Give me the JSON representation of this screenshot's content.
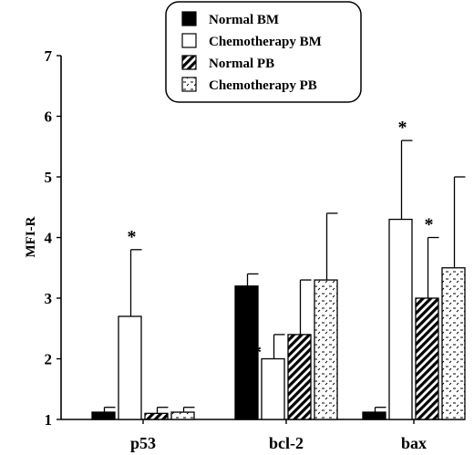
{
  "chart_data": {
    "type": "bar",
    "ylabel": "MFI-R",
    "ylim": [
      1,
      7
    ],
    "yticks": [
      "1",
      "2",
      "3",
      "4",
      "5",
      "6",
      "7"
    ],
    "categories": [
      "p53",
      "bcl-2",
      "bax"
    ],
    "legend_position": "top-center",
    "series": [
      {
        "name": "Normal BM",
        "fill": "solid-black",
        "values": [
          1.12,
          3.2,
          1.12
        ],
        "errors": [
          0.08,
          0.2,
          0.08
        ],
        "annotations": [
          "",
          "",
          ""
        ]
      },
      {
        "name": "Chemotherapy BM",
        "fill": "white",
        "values": [
          2.7,
          2.0,
          4.3
        ],
        "errors": [
          1.1,
          0.4,
          1.3
        ],
        "annotations": [
          "*",
          "**",
          "*"
        ]
      },
      {
        "name": "Normal PB",
        "fill": "diagonal-hatch",
        "values": [
          1.1,
          2.4,
          3.0
        ],
        "errors": [
          0.1,
          0.9,
          1.0
        ],
        "annotations": [
          "",
          "",
          "*"
        ]
      },
      {
        "name": "Chemotherapy PB",
        "fill": "dashed-pattern",
        "values": [
          1.12,
          3.3,
          3.5
        ],
        "errors": [
          0.08,
          1.1,
          1.5
        ],
        "annotations": [
          "",
          "",
          ""
        ]
      }
    ]
  }
}
